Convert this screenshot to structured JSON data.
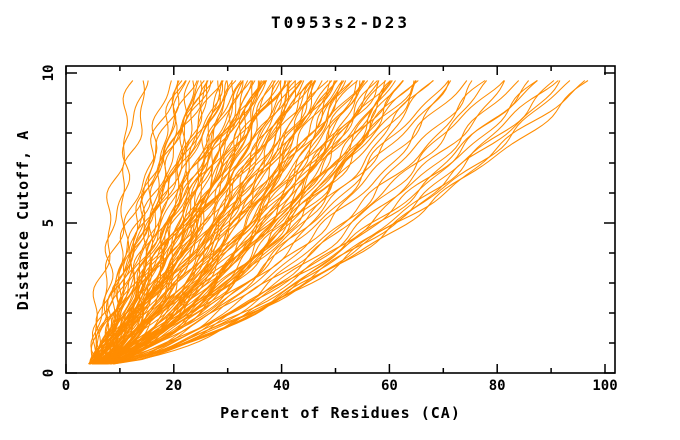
{
  "page": {
    "background": "#ffffff"
  },
  "chart_data": {
    "type": "line",
    "title": "T0953s2-D23",
    "xlabel": "Percent of Residues (CA)",
    "ylabel": "Distance Cutoff, A",
    "xlim": [
      0,
      101.9
    ],
    "ylim": [
      0,
      10.23
    ],
    "x_major_ticks": [
      0,
      20,
      40,
      60,
      80,
      100
    ],
    "x_minor_ticks": [
      10,
      30,
      50,
      70,
      90
    ],
    "x_tick_labels": [
      "0",
      "20",
      "40",
      "60",
      "80",
      "100"
    ],
    "y_major_ticks": [
      0,
      5,
      10
    ],
    "y_minor_ticks": [
      1,
      2,
      3,
      4,
      6,
      7,
      8,
      9
    ],
    "y_tick_labels": [
      "0",
      "5",
      "10"
    ],
    "grid": false,
    "legend": "none",
    "line_color": "#ff8c00",
    "axis_color": "#000000",
    "background_color": "#ffffff",
    "description": "Each curve is one predicted model: percent of CA residues (x) under a superposition distance cutoff (y). Curves estimated from pixels.",
    "cutoff_start": 0.3,
    "cutoff_end": 9.75,
    "curve_model": "percent(c) = s + (e - s) * ((c - cutoff_start)/(cutoff_end - cutoff_start))^k, plus small wobble",
    "wobble_amplitude": [
      0.85,
      0.5
    ],
    "curves": [
      [
        5.0,
        12.5,
        1.3
      ],
      [
        5.5,
        14.0,
        1.2
      ],
      [
        6.0,
        15.0,
        1.25
      ],
      [
        4.5,
        19.5,
        1.0
      ],
      [
        5.0,
        21.0,
        0.95
      ],
      [
        6.0,
        22.0,
        1.05
      ],
      [
        4.0,
        23.0,
        0.9
      ],
      [
        5.5,
        24.0,
        1.0
      ],
      [
        6.5,
        25.0,
        0.92
      ],
      [
        5.0,
        26.0,
        1.08
      ],
      [
        4.5,
        27.0,
        0.95
      ],
      [
        6.0,
        28.0,
        0.88
      ],
      [
        5.5,
        29.0,
        1.0
      ],
      [
        7.0,
        30.0,
        0.9
      ],
      [
        4.8,
        20.5,
        1.1
      ],
      [
        5.2,
        23.5,
        0.98
      ],
      [
        6.2,
        26.5,
        0.93
      ],
      [
        5.8,
        29.5,
        0.87
      ],
      [
        5.0,
        31.0,
        0.85
      ],
      [
        6.0,
        32.0,
        0.9
      ],
      [
        4.5,
        33.0,
        0.8
      ],
      [
        7.0,
        34.0,
        0.88
      ],
      [
        5.5,
        35.0,
        0.82
      ],
      [
        6.5,
        36.0,
        0.9
      ],
      [
        5.0,
        37.0,
        0.78
      ],
      [
        4.8,
        38.0,
        0.85
      ],
      [
        6.0,
        39.0,
        0.8
      ],
      [
        5.2,
        40.0,
        0.88
      ],
      [
        7.0,
        41.0,
        0.76
      ],
      [
        5.5,
        42.0,
        0.83
      ],
      [
        6.8,
        43.0,
        0.8
      ],
      [
        4.6,
        44.0,
        0.86
      ],
      [
        5.9,
        45.0,
        0.75
      ],
      [
        6.3,
        31.5,
        0.92
      ],
      [
        5.1,
        33.5,
        0.84
      ],
      [
        6.6,
        35.5,
        0.8
      ],
      [
        4.9,
        37.5,
        0.82
      ],
      [
        5.7,
        39.5,
        0.78
      ],
      [
        6.1,
        41.5,
        0.84
      ],
      [
        5.3,
        43.5,
        0.79
      ],
      [
        6.9,
        44.5,
        0.74
      ],
      [
        5.0,
        34.5,
        0.9
      ],
      [
        5.6,
        36.5,
        0.77
      ],
      [
        6.4,
        38.5,
        0.85
      ],
      [
        4.7,
        40.5,
        0.8
      ],
      [
        5.8,
        42.5,
        0.75
      ],
      [
        6.2,
        32.5,
        0.88
      ],
      [
        5.4,
        44.8,
        0.77
      ],
      [
        6.0,
        46.0,
        0.75
      ],
      [
        5.0,
        47.0,
        0.8
      ],
      [
        7.0,
        48.0,
        0.72
      ],
      [
        5.5,
        49.0,
        0.78
      ],
      [
        6.5,
        50.0,
        0.7
      ],
      [
        5.2,
        51.0,
        0.76
      ],
      [
        6.8,
        52.0,
        0.74
      ],
      [
        5.8,
        53.0,
        0.68
      ],
      [
        6.2,
        54.0,
        0.75
      ],
      [
        5.4,
        55.0,
        0.7
      ],
      [
        7.2,
        56.0,
        0.72
      ],
      [
        5.6,
        57.0,
        0.67
      ],
      [
        6.6,
        58.0,
        0.73
      ],
      [
        5.9,
        59.0,
        0.69
      ],
      [
        6.1,
        60.0,
        0.74
      ],
      [
        5.3,
        61.0,
        0.68
      ],
      [
        6.9,
        62.0,
        0.7
      ],
      [
        5.7,
        63.0,
        0.66
      ],
      [
        6.3,
        64.0,
        0.72
      ],
      [
        5.5,
        65.0,
        0.68
      ],
      [
        6.0,
        46.5,
        0.77
      ],
      [
        5.1,
        48.5,
        0.73
      ],
      [
        6.7,
        50.5,
        0.69
      ],
      [
        5.9,
        52.5,
        0.74
      ],
      [
        6.4,
        54.5,
        0.67
      ],
      [
        5.2,
        56.5,
        0.71
      ],
      [
        7.0,
        58.5,
        0.68
      ],
      [
        5.6,
        60.5,
        0.73
      ],
      [
        6.2,
        62.5,
        0.66
      ],
      [
        5.8,
        64.5,
        0.7
      ],
      [
        6.5,
        47.5,
        0.71
      ],
      [
        5.3,
        53.5,
        0.69
      ],
      [
        6.1,
        57.5,
        0.72
      ],
      [
        5.7,
        61.5,
        0.67
      ],
      [
        6.3,
        49.5,
        0.75
      ],
      [
        6.0,
        66.0,
        0.68
      ],
      [
        7.0,
        68.0,
        0.65
      ],
      [
        6.5,
        70.0,
        0.7
      ],
      [
        5.8,
        72.0,
        0.64
      ],
      [
        7.2,
        74.0,
        0.68
      ],
      [
        6.2,
        76.0,
        0.63
      ],
      [
        6.8,
        78.0,
        0.67
      ],
      [
        5.9,
        80.0,
        0.65
      ],
      [
        7.5,
        82.0,
        0.62
      ],
      [
        6.4,
        84.0,
        0.66
      ],
      [
        7.1,
        86.0,
        0.63
      ],
      [
        6.6,
        88.0,
        0.68
      ],
      [
        7.8,
        90.0,
        0.64
      ],
      [
        6.9,
        92.0,
        0.66
      ],
      [
        8.2,
        94.0,
        0.68
      ],
      [
        7.4,
        96.0,
        0.7
      ],
      [
        8.8,
        97.5,
        0.72
      ],
      [
        6.1,
        67.0,
        0.66
      ],
      [
        6.7,
        71.0,
        0.69
      ],
      [
        7.3,
        79.0,
        0.64
      ],
      [
        6.3,
        87.0,
        0.65
      ],
      [
        7.6,
        91.0,
        0.67
      ],
      [
        5.5,
        21.5,
        1.02
      ],
      [
        6.0,
        24.5,
        0.95
      ],
      [
        5.2,
        27.5,
        0.9
      ],
      [
        6.4,
        30.5,
        0.87
      ],
      [
        5.7,
        33.8,
        0.83
      ],
      [
        6.6,
        36.8,
        0.8
      ],
      [
        5.1,
        39.8,
        0.84
      ],
      [
        6.0,
        42.8,
        0.78
      ],
      [
        5.4,
        25.5,
        0.93
      ],
      [
        6.2,
        28.5,
        0.89
      ],
      [
        5.0,
        22.5,
        1.0
      ],
      [
        5.8,
        26.0,
        0.92
      ],
      [
        6.3,
        29.2,
        0.9
      ],
      [
        4.9,
        31.8,
        0.86
      ],
      [
        5.6,
        34.2,
        0.82
      ],
      [
        6.1,
        37.2,
        0.8
      ],
      [
        5.3,
        40.2,
        0.83
      ],
      [
        6.7,
        43.2,
        0.77
      ],
      [
        5.2,
        46.2,
        0.76
      ],
      [
        6.0,
        49.2,
        0.73
      ],
      [
        5.5,
        52.2,
        0.72
      ],
      [
        6.4,
        55.2,
        0.7
      ],
      [
        5.8,
        58.2,
        0.71
      ],
      [
        6.2,
        61.2,
        0.69
      ],
      [
        5.4,
        64.2,
        0.68
      ],
      [
        6.6,
        51.2,
        0.74
      ],
      [
        5.9,
        47.8,
        0.75
      ],
      [
        5.1,
        35.8,
        0.81
      ]
    ]
  }
}
